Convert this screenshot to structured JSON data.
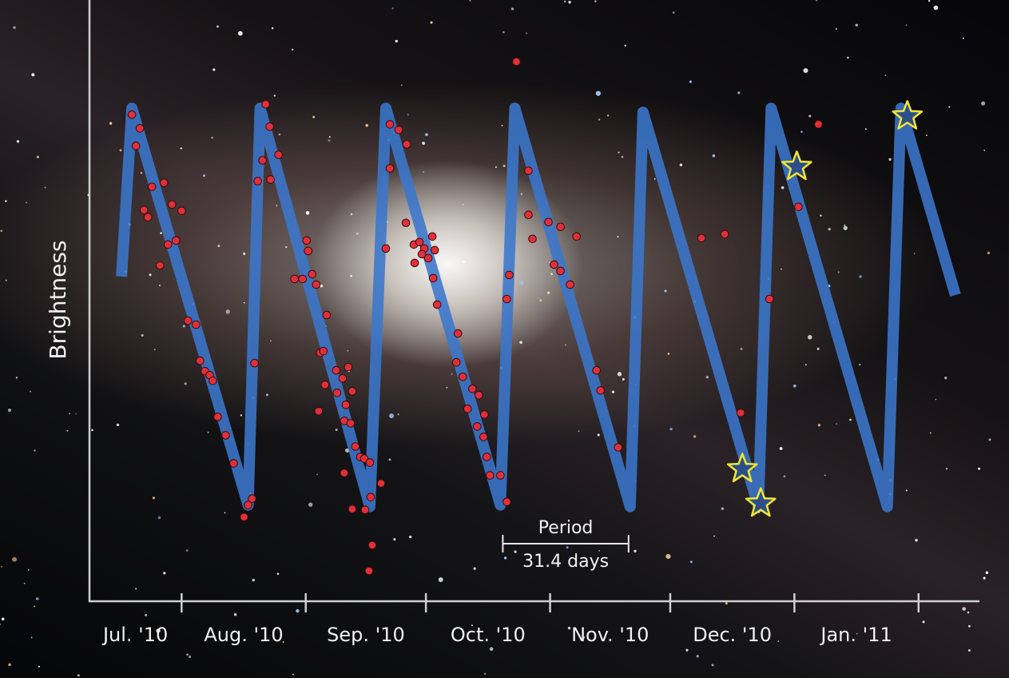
{
  "chart_data": {
    "type": "scatter",
    "y_label": "Brightness",
    "categories": [
      "Jul. '10",
      "Aug. '10",
      "Sep. '10",
      "Oct. '10",
      "Nov. '10",
      "Dec. '10",
      "Jan. '11"
    ],
    "xlim": [
      8,
      230
    ],
    "xticks": [
      31,
      62,
      92,
      123,
      153,
      184,
      215
    ],
    "ylim": [
      0,
      750
    ],
    "fit": {
      "color": "#3b76cc",
      "x": [
        16,
        18.6,
        47.6,
        50.6,
        78,
        82,
        110.6,
        114.2,
        143,
        146.2,
        175,
        178.2,
        207.2,
        210.6,
        224.2
      ],
      "values": [
        405,
        615,
        120,
        615,
        118,
        615,
        120,
        615,
        118,
        610,
        118,
        615,
        118,
        615,
        382
      ]
    },
    "series": [
      {
        "color": "#e0303a",
        "x": [
          18.6,
          20.6,
          19.6,
          23.6,
          26.6,
          21.6,
          22.6,
          28.6,
          31,
          25.6,
          27.6,
          29.6,
          32.6,
          34.6,
          35.6,
          36.8,
          38,
          38.8,
          40,
          42,
          44,
          48.6,
          47.6,
          46.6,
          52,
          53,
          55.2,
          51.2,
          53.2,
          50,
          49.2,
          62.2,
          62.6,
          59.2,
          61.2,
          63.6,
          64.6,
          67.2,
          65.6,
          66.4,
          66.8,
          65.2,
          69.6,
          71.2,
          72.6,
          69.8,
          73.6,
          72,
          71.6,
          73.2,
          74.4,
          75.6,
          76.6,
          78,
          71.6,
          73.6,
          76.8,
          78.2,
          80.8,
          78.6,
          77.8,
          83,
          85.2,
          87.2,
          83,
          82,
          87,
          89,
          90.4,
          91.6,
          89.2,
          91,
          93.6,
          94.2,
          92.6,
          93.8,
          94.8,
          100,
          99.6,
          101.2,
          103.6,
          105.2,
          102.4,
          104.8,
          106.4,
          106.6,
          107.2,
          108,
          110.6,
          112.2,
          114.6,
          117.6,
          117.6,
          122.6,
          118.6,
          125.6,
          129.6,
          112.8,
          112.2,
          124,
          125.6,
          128,
          134.6,
          135.6,
          140,
          160.8,
          166.6,
          170.6,
          177.8,
          185,
          190
        ],
        "values": [
          607,
          590,
          568,
          517,
          522,
          488,
          479,
          495,
          487,
          419,
          445,
          450,
          350,
          345,
          300,
          287,
          282,
          275,
          230,
          207,
          172,
          128,
          120,
          105,
          620,
          592,
          557,
          550,
          526,
          524,
          297,
          450,
          437,
          402,
          402,
          408,
          395,
          357,
          310,
          312,
          270,
          237,
          288,
          278,
          292,
          260,
          262,
          245,
          225,
          222,
          193,
          180,
          178,
          173,
          160,
          115,
          114,
          130,
          147,
          70,
          38,
          595,
          588,
          570,
          540,
          440,
          472,
          445,
          448,
          440,
          422,
          433,
          455,
          438,
          428,
          403,
          370,
          334,
          298,
          280,
          265,
          257,
          240,
          218,
          205,
          233,
          180,
          157,
          157,
          124,
          673,
          537,
          482,
          473,
          452,
          467,
          455,
          407,
          377,
          420,
          412,
          395,
          288,
          263,
          192,
          453,
          458,
          235,
          377,
          492,
          595
        ]
      }
    ],
    "highlights": {
      "color": "#2c4f8c",
      "outline": "#f2e632",
      "x": [
        171,
        175.6,
        184.6,
        212.2
      ],
      "values": [
        165,
        122,
        542,
        605
      ]
    },
    "annotation": {
      "label": "Period",
      "value_label": "31.4 days",
      "x": [
        111.2,
        142.6
      ]
    }
  }
}
